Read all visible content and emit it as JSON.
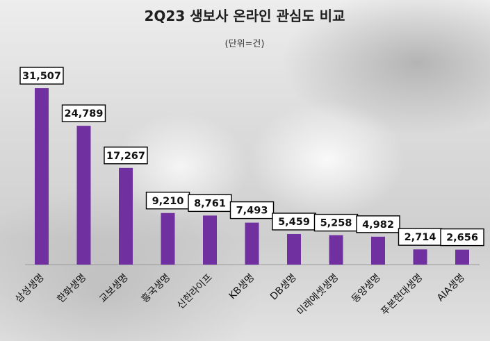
{
  "chart_data": {
    "type": "bar",
    "title": "2Q23 생보사 온라인 관심도 비교",
    "subtitle": "(단위=건)",
    "categories": [
      "삼성생명",
      "한화생명",
      "교보생명",
      "흥국생명",
      "신한라이프",
      "KB생명",
      "DB생명",
      "미래에셋생명",
      "동양생명",
      "푸본현대생명",
      "AIA생명"
    ],
    "values": [
      31507,
      24789,
      17267,
      9210,
      8761,
      7493,
      5459,
      5258,
      4982,
      2714,
      2656
    ],
    "value_labels": [
      "31,507",
      "24,789",
      "17,267",
      "9,210",
      "8,761",
      "7,493",
      "5,459",
      "5,258",
      "4,982",
      "2,714",
      "2,656"
    ],
    "ylim": [
      0,
      31507
    ],
    "bar_color": "#7030a0",
    "grid": false,
    "legend": "none"
  }
}
